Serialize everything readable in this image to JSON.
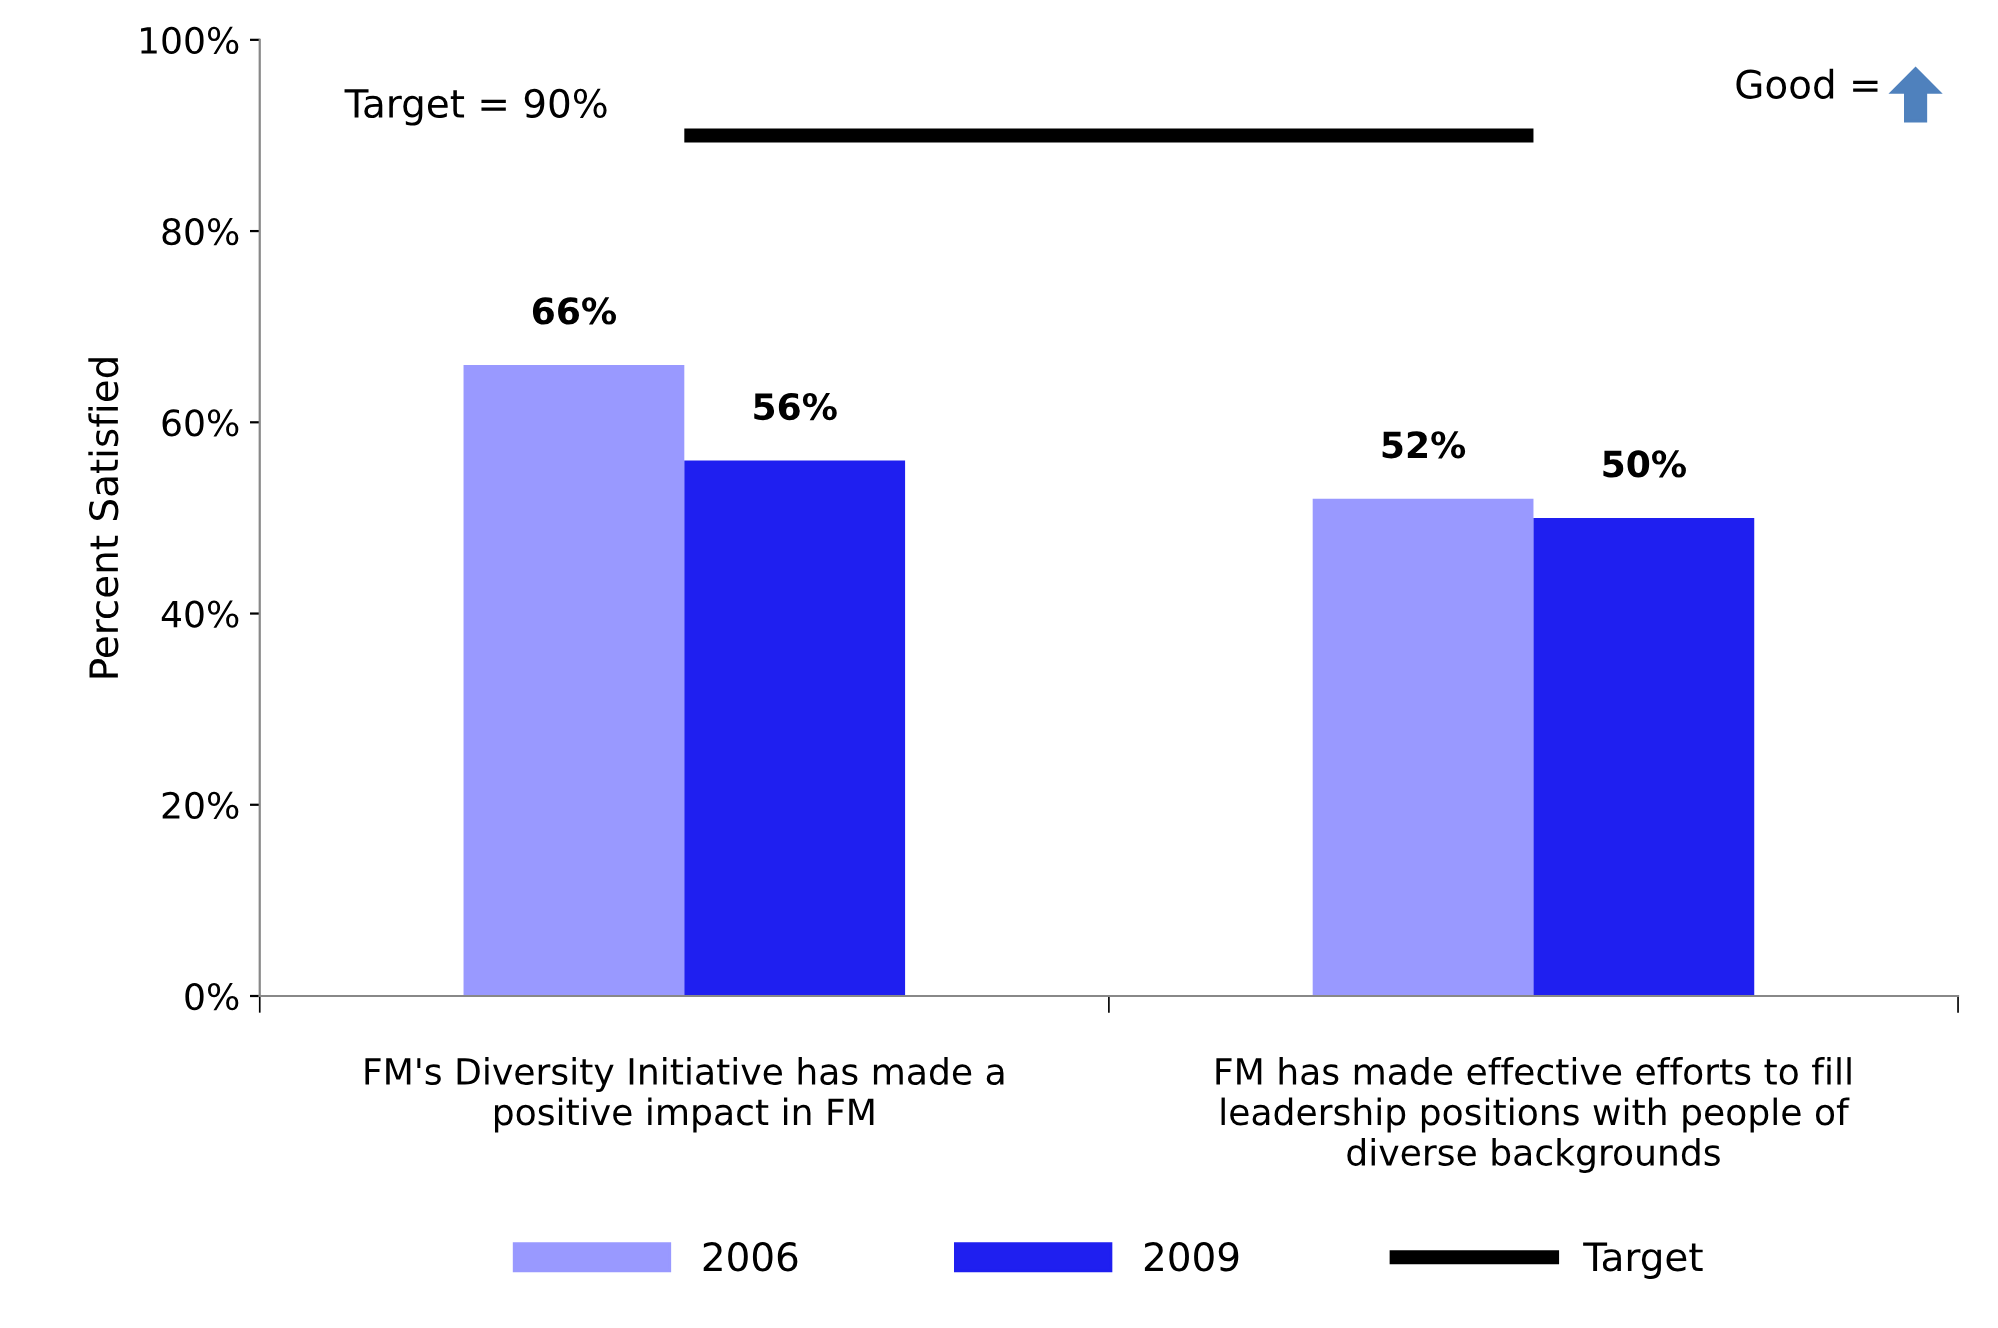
{
  "chart_data": {
    "type": "bar",
    "ylabel": "Percent Satisfied",
    "categories": [
      "FM's Diversity Initiative has made a\npositive impact in FM",
      "FM has made effective efforts to fill\nleadership positions with people of\ndiverse backgrounds"
    ],
    "series": [
      {
        "name": "2006",
        "color": "#9999ff",
        "values": [
          66,
          52
        ],
        "value_labels": [
          "66%",
          "52%"
        ]
      },
      {
        "name": "2009",
        "color": "#1f1ff0",
        "values": [
          56,
          50
        ],
        "value_labels": [
          "56%",
          "50%"
        ]
      },
      {
        "name": "Target",
        "type": "line",
        "color": "#000000",
        "values": [
          90,
          90
        ]
      }
    ],
    "ylim": [
      0,
      100
    ],
    "yticks": [
      {
        "value": 0,
        "label": "0%"
      },
      {
        "value": 20,
        "label": "20%"
      },
      {
        "value": 40,
        "label": "40%"
      },
      {
        "value": 60,
        "label": "60%"
      },
      {
        "value": 80,
        "label": "80%"
      },
      {
        "value": 100,
        "label": "100%"
      }
    ],
    "annotations": [
      "Target = 90%",
      "Good ="
    ],
    "legend": "bottom",
    "grid": false
  }
}
